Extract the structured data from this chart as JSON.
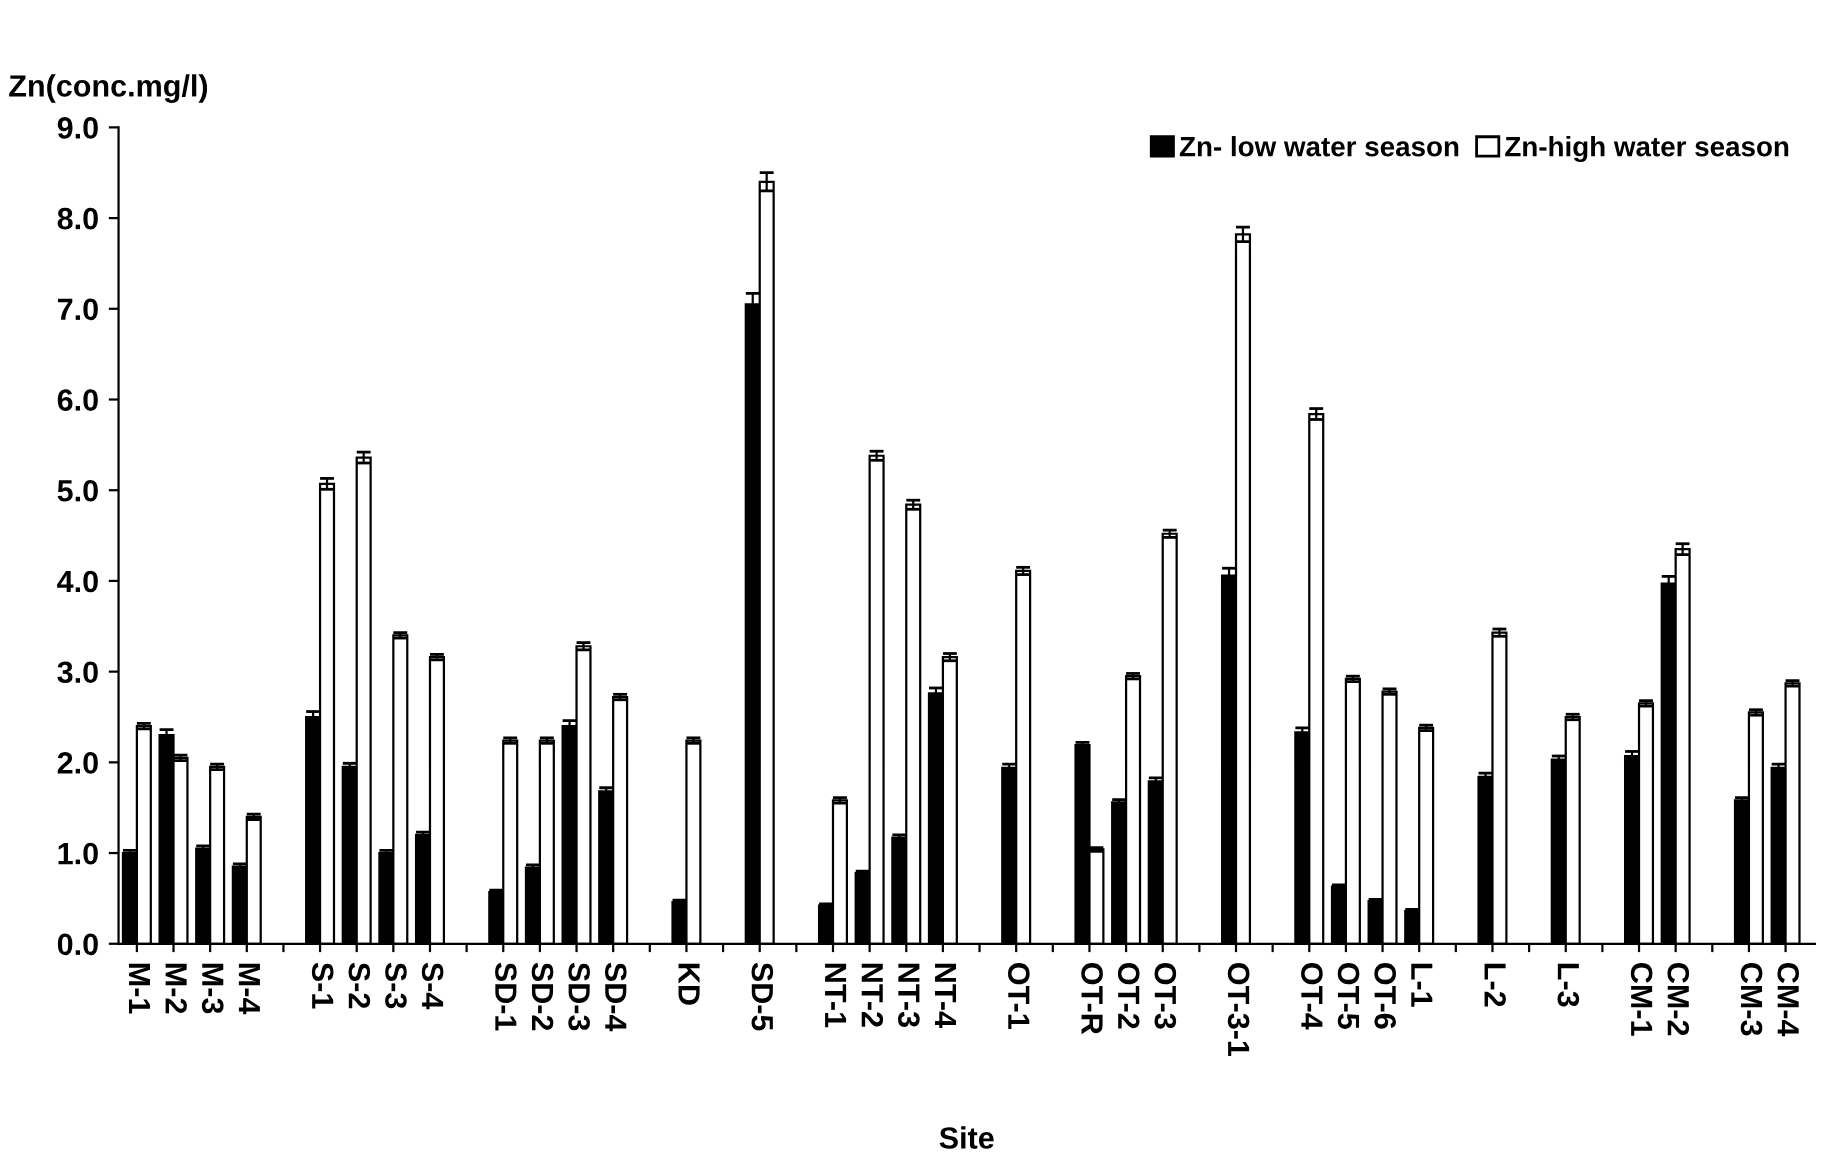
{
  "chart_data": {
    "type": "bar",
    "ylabel": "Zn(conc.mg/l)",
    "xlabel": "Site",
    "categories": [
      "M-1",
      "M-2",
      "M-3",
      "M-4",
      null,
      "S-1",
      "S-2",
      "S-3",
      "S-4",
      null,
      "SD-1",
      "SD-2",
      "SD-3",
      "SD-4",
      null,
      "KD",
      null,
      "SD-5",
      null,
      "NT-1",
      "NT-2",
      "NT-3",
      "NT-4",
      null,
      "OT-1",
      null,
      "OT-R",
      "OT-2",
      "OT-3",
      null,
      "OT-3-1",
      null,
      "OT-4",
      "OT-5",
      "OT-6",
      "L-1",
      null,
      "L-2",
      null,
      "L-3",
      null,
      "CM-1",
      "CM-2",
      null,
      "CM-3",
      "CM-4"
    ],
    "series": [
      {
        "name": "Zn- low water season",
        "color": "#000000",
        "values": [
          1.0,
          2.3,
          1.05,
          0.85,
          null,
          2.5,
          1.95,
          1.0,
          1.2,
          null,
          0.57,
          0.84,
          2.4,
          1.68,
          null,
          0.46,
          null,
          7.05,
          null,
          0.42,
          0.78,
          1.17,
          2.76,
          null,
          1.94,
          null,
          2.19,
          1.56,
          1.79,
          null,
          4.06,
          null,
          2.33,
          0.63,
          0.47,
          0.36,
          null,
          1.84,
          null,
          2.03,
          null,
          2.07,
          3.97,
          null,
          1.58,
          1.94
        ],
        "errors": [
          0.03,
          0.06,
          0.03,
          0.03,
          null,
          0.06,
          0.04,
          0.03,
          0.03,
          null,
          0.02,
          0.03,
          0.06,
          0.04,
          null,
          0.02,
          null,
          0.12,
          null,
          0.02,
          0.02,
          0.03,
          0.06,
          null,
          0.04,
          null,
          0.03,
          0.03,
          0.04,
          null,
          0.08,
          null,
          0.05,
          0.02,
          0.02,
          0.02,
          null,
          0.04,
          null,
          0.04,
          null,
          0.05,
          0.08,
          null,
          0.03,
          0.04
        ]
      },
      {
        "name": "Zn-high water season",
        "color": "#ffffff",
        "values": [
          2.4,
          2.05,
          1.95,
          1.4,
          null,
          5.07,
          5.36,
          3.4,
          3.16,
          null,
          2.24,
          2.24,
          3.28,
          2.72,
          null,
          2.24,
          null,
          8.4,
          null,
          1.58,
          5.38,
          4.84,
          3.16,
          null,
          4.11,
          null,
          1.04,
          2.95,
          4.52,
          null,
          7.82,
          null,
          5.84,
          2.92,
          2.78,
          2.38,
          null,
          3.43,
          null,
          2.5,
          null,
          2.65,
          4.35,
          null,
          2.55,
          2.87
        ],
        "errors": [
          0.03,
          0.03,
          0.03,
          0.03,
          null,
          0.06,
          0.06,
          0.03,
          0.03,
          null,
          0.03,
          0.03,
          0.04,
          0.03,
          null,
          0.03,
          null,
          0.1,
          null,
          0.03,
          0.05,
          0.05,
          0.04,
          null,
          0.04,
          null,
          0.02,
          0.03,
          0.04,
          null,
          0.08,
          null,
          0.06,
          0.03,
          0.03,
          0.03,
          null,
          0.04,
          null,
          0.03,
          null,
          0.03,
          0.06,
          null,
          0.03,
          0.03
        ]
      }
    ],
    "ylim": [
      0,
      9
    ],
    "yticks": [
      {
        "value": 0,
        "label": "0.0"
      },
      {
        "value": 1,
        "label": "1.0"
      },
      {
        "value": 2,
        "label": "2.0"
      },
      {
        "value": 3,
        "label": "3.0"
      },
      {
        "value": 4,
        "label": "4.0"
      },
      {
        "value": 5,
        "label": "5.0"
      },
      {
        "value": 6,
        "label": "6.0"
      },
      {
        "value": 7,
        "label": "7.0"
      },
      {
        "value": 8,
        "label": "8.0"
      },
      {
        "value": 9,
        "label": "9.0"
      }
    ],
    "legend": "top right",
    "grid": false
  }
}
